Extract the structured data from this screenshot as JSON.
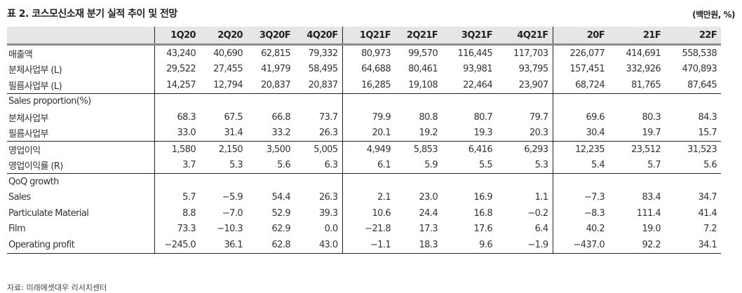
{
  "title": "표 2. 코스모신소재 분기 실적 추이 및 전망",
  "unit": "(백만원, %)",
  "columns": [
    "1Q20",
    "2Q20",
    "3Q20F",
    "4Q20F",
    "1Q21F",
    "2Q21F",
    "3Q21F",
    "4Q21F",
    "20F",
    "21F",
    "22F"
  ],
  "rows": [
    {
      "label": "매출액",
      "values": [
        "43,240",
        "40,690",
        "62,815",
        "79,332",
        "80,973",
        "99,570",
        "116,445",
        "117,703",
        "226,077",
        "414,691",
        "558,538"
      ]
    },
    {
      "label": "분체사업부 (L)",
      "values": [
        "29,522",
        "27,455",
        "41,979",
        "58,495",
        "64,688",
        "80,461",
        "93,981",
        "93,795",
        "157,451",
        "332,926",
        "470,893"
      ]
    },
    {
      "label": "필름사업부 (L)",
      "values": [
        "14,257",
        "12,794",
        "20,837",
        "20,837",
        "16,285",
        "19,108",
        "22,464",
        "23,907",
        "68,724",
        "81,765",
        "87,645"
      ]
    },
    {
      "label": "Sales proportion(%)",
      "values": [
        "",
        "",
        "",
        "",
        "",
        "",
        "",
        "",
        "",
        "",
        ""
      ],
      "sep": true
    },
    {
      "label": "분체사업부",
      "values": [
        "68.3",
        "67.5",
        "66.8",
        "73.7",
        "79.9",
        "80.8",
        "80.7",
        "79.7",
        "69.6",
        "80.3",
        "84.3"
      ]
    },
    {
      "label": "필름사업부",
      "values": [
        "33.0",
        "31.4",
        "33.2",
        "26.3",
        "20.1",
        "19.2",
        "19.3",
        "20.3",
        "30.4",
        "19.7",
        "15.7"
      ]
    },
    {
      "label": "영업이익",
      "values": [
        "1,580",
        "2,150",
        "3,500",
        "5,005",
        "4,949",
        "5,853",
        "6,416",
        "6,293",
        "12,235",
        "23,512",
        "31,523"
      ],
      "sep": true
    },
    {
      "label": "영업이익률 (R)",
      "values": [
        "3.7",
        "5.3",
        "5.6",
        "6.3",
        "6.1",
        "5.9",
        "5.5",
        "5.3",
        "5.4",
        "5.7",
        "5.6"
      ]
    },
    {
      "label": "QoQ growth",
      "values": [
        "",
        "",
        "",
        "",
        "",
        "",
        "",
        "",
        "",
        "",
        ""
      ],
      "sep": true
    },
    {
      "label": "Sales",
      "values": [
        "5.7",
        "−5.9",
        "54.4",
        "26.3",
        "2.1",
        "23.0",
        "16.9",
        "1.1",
        "−7.3",
        "83.4",
        "34.7"
      ]
    },
    {
      "label": "Particulate Material",
      "values": [
        "8.8",
        "−7.0",
        "52.9",
        "39.3",
        "10.6",
        "24.4",
        "16.8",
        "−0.2",
        "−8.3",
        "111.4",
        "41.4"
      ]
    },
    {
      "label": "Film",
      "values": [
        "73.3",
        "−10.3",
        "62.9",
        "0.0",
        "−21.8",
        "17.3",
        "17.6",
        "6.4",
        "40.2",
        "19.0",
        "7.2"
      ]
    },
    {
      "label": "Operating profit",
      "values": [
        "−245.0",
        "36.1",
        "62.8",
        "43.0",
        "−1.1",
        "18.3",
        "9.6",
        "−1.9",
        "−437.0",
        "92.2",
        "34.1"
      ]
    }
  ],
  "source": "자료: 미래에셋대우 리서치센터"
}
